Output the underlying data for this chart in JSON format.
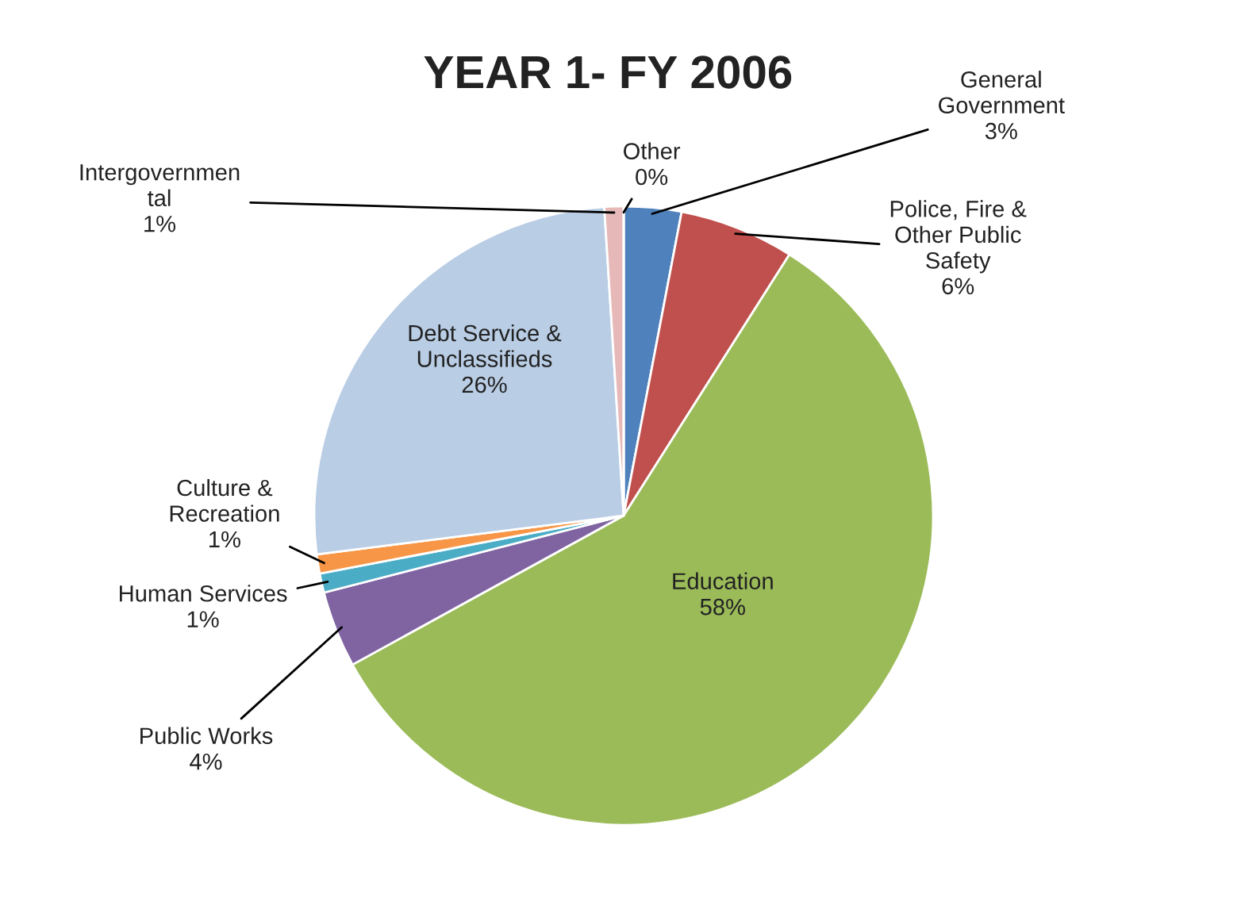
{
  "chart_data": {
    "type": "pie",
    "title": "YEAR 1- FY 2006",
    "categories": [
      "General\nGovernment",
      "Police, Fire &\nOther Public\nSafety",
      "Education",
      "Public Works",
      "Human Services",
      "Culture &\nRecreation",
      "Debt Service &\nUnclassifieds",
      "Intergovernmen\ntal",
      "Other"
    ],
    "values": [
      3,
      6,
      58,
      4,
      1,
      1,
      26,
      1,
      0
    ],
    "value_labels": [
      "3%",
      "6%",
      "58%",
      "4%",
      "1%",
      "1%",
      "26%",
      "1%",
      "0%"
    ],
    "colors": [
      "#4f81bd",
      "#c0504d",
      "#9bbb59",
      "#8064a2",
      "#4bacc6",
      "#f79646",
      "#b9cde5",
      "#e6b9b8",
      "#a6a6a6"
    ],
    "legend": false
  }
}
